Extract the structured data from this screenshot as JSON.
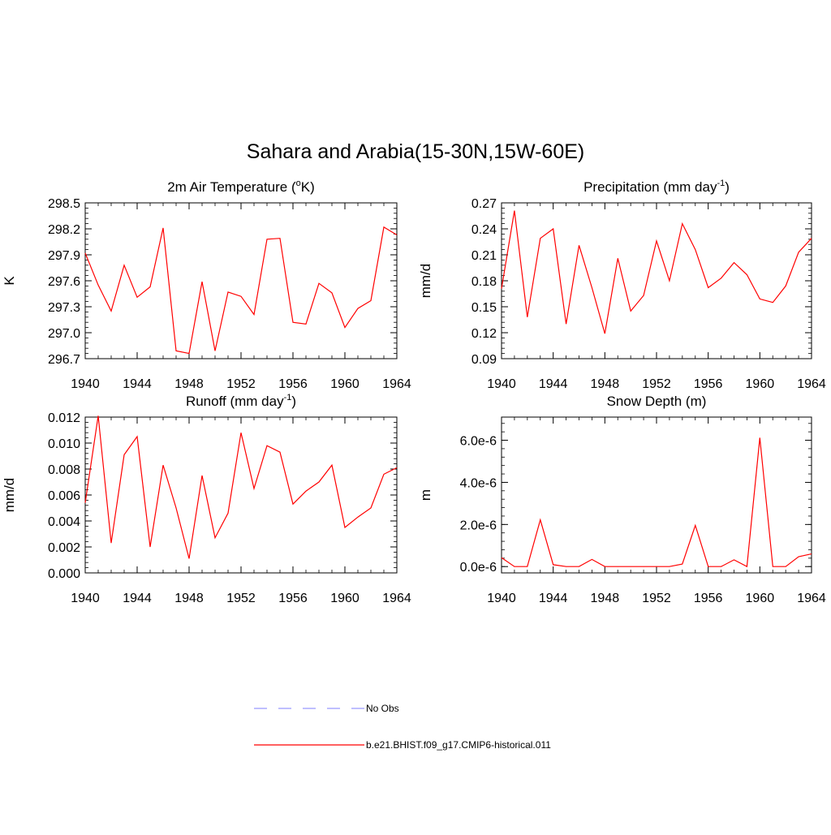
{
  "figure": {
    "title": "Sahara and Arabia(15-30N,15W-60E)",
    "line_color": "#ff0000",
    "obs_line_color": "#9999ff"
  },
  "chart_data": [
    {
      "type": "line",
      "title_base": "2m Air Temperature (",
      "title_sup": "o",
      "title_end": "K)",
      "ylabel": "K",
      "xlabel": "",
      "xlim": [
        1940,
        1964
      ],
      "ylim": [
        296.7,
        298.5
      ],
      "xticks": [
        "1940",
        "1944",
        "1948",
        "1952",
        "1956",
        "1960",
        "1964"
      ],
      "yticks": [
        "296.7",
        "297.0",
        "297.3",
        "297.6",
        "297.9",
        "298.2",
        "298.5"
      ],
      "grid": false,
      "series": [
        {
          "name": "b.e21.BHIST.f09_g17.CMIP6-historical.011",
          "x": [
            1940,
            1941,
            1942,
            1943,
            1944,
            1945,
            1946,
            1947,
            1948,
            1949,
            1950,
            1951,
            1952,
            1953,
            1954,
            1955,
            1956,
            1957,
            1958,
            1959,
            1960,
            1961,
            1962,
            1963,
            1964
          ],
          "y": [
            297.92,
            297.55,
            297.25,
            297.78,
            297.41,
            297.53,
            298.21,
            296.79,
            296.76,
            297.59,
            296.79,
            297.47,
            297.42,
            297.21,
            298.08,
            298.09,
            297.12,
            297.1,
            297.57,
            297.46,
            297.06,
            297.28,
            297.37,
            298.22,
            298.13
          ]
        }
      ]
    },
    {
      "type": "line",
      "title_base": "Precipitation (mm day",
      "title_sup": "-1",
      "title_end": ")",
      "ylabel": "mm/d",
      "xlabel": "",
      "xlim": [
        1940,
        1964
      ],
      "ylim": [
        0.09,
        0.27
      ],
      "xticks": [
        "1940",
        "1944",
        "1948",
        "1952",
        "1956",
        "1960",
        "1964"
      ],
      "yticks": [
        "0.09",
        "0.12",
        "0.15",
        "0.18",
        "0.21",
        "0.24",
        "0.27"
      ],
      "grid": false,
      "series": [
        {
          "name": "b.e21.BHIST.f09_g17.CMIP6-historical.011",
          "x": [
            1940,
            1941,
            1942,
            1943,
            1944,
            1945,
            1946,
            1947,
            1948,
            1949,
            1950,
            1951,
            1952,
            1953,
            1954,
            1955,
            1956,
            1957,
            1958,
            1959,
            1960,
            1961,
            1962,
            1963,
            1964
          ],
          "y": [
            0.171,
            0.261,
            0.138,
            0.229,
            0.24,
            0.13,
            0.221,
            0.172,
            0.119,
            0.206,
            0.145,
            0.163,
            0.226,
            0.18,
            0.246,
            0.216,
            0.172,
            0.183,
            0.201,
            0.187,
            0.159,
            0.155,
            0.174,
            0.213,
            0.229
          ]
        }
      ]
    },
    {
      "type": "line",
      "title_base": "Runoff (mm day",
      "title_sup": "-1",
      "title_end": ")",
      "ylabel": "mm/d",
      "xlabel": "",
      "xlim": [
        1940,
        1964
      ],
      "ylim": [
        0.0,
        0.012
      ],
      "xticks": [
        "1940",
        "1944",
        "1948",
        "1952",
        "1956",
        "1960",
        "1964"
      ],
      "yticks": [
        "0.000",
        "0.002",
        "0.004",
        "0.006",
        "0.008",
        "0.010",
        "0.012"
      ],
      "grid": false,
      "series": [
        {
          "name": "b.e21.BHIST.f09_g17.CMIP6-historical.011",
          "x": [
            1940,
            1941,
            1942,
            1943,
            1944,
            1945,
            1946,
            1947,
            1948,
            1949,
            1950,
            1951,
            1952,
            1953,
            1954,
            1955,
            1956,
            1957,
            1958,
            1959,
            1960,
            1961,
            1962,
            1963,
            1964
          ],
          "y": [
            0.0054,
            0.0121,
            0.0023,
            0.0091,
            0.0105,
            0.002,
            0.0083,
            0.005,
            0.0011,
            0.0075,
            0.0027,
            0.0046,
            0.0108,
            0.0065,
            0.0098,
            0.0093,
            0.0053,
            0.0063,
            0.007,
            0.0083,
            0.0035,
            0.0043,
            0.005,
            0.0076,
            0.0081
          ]
        }
      ]
    },
    {
      "type": "line",
      "title_base": "Snow Depth (m)",
      "title_sup": "",
      "title_end": "",
      "ylabel": "m",
      "xlabel": "",
      "xlim": [
        1940,
        1964
      ],
      "ylim": [
        -3e-07,
        7.1e-06
      ],
      "xticks": [
        "1940",
        "1944",
        "1948",
        "1952",
        "1956",
        "1960",
        "1964"
      ],
      "yticks": [
        "0.0e-6",
        "2.0e-6",
        "4.0e-6",
        "6.0e-6"
      ],
      "ytick_values": [
        0,
        2e-06,
        4e-06,
        6e-06
      ],
      "grid": false,
      "series": [
        {
          "name": "b.e21.BHIST.f09_g17.CMIP6-historical.011",
          "x": [
            1940,
            1941,
            1942,
            1943,
            1944,
            1945,
            1946,
            1947,
            1948,
            1949,
            1950,
            1951,
            1952,
            1953,
            1954,
            1955,
            1956,
            1957,
            1958,
            1959,
            1960,
            1961,
            1962,
            1963,
            1964
          ],
          "y": [
            4.2e-07,
            0.0,
            0.0,
            2.22e-06,
            9e-08,
            0.0,
            0.0,
            3.4e-07,
            0.0,
            0.0,
            0.0,
            0.0,
            0.0,
            0.0,
            1.2e-07,
            1.96e-06,
            0.0,
            0.0,
            3.2e-07,
            0.0,
            6.12e-06,
            0.0,
            0.0,
            4.7e-07,
            6e-07
          ]
        }
      ]
    }
  ],
  "legend": {
    "items": [
      {
        "label": "No Obs",
        "style": "dashed",
        "color": "#9999ff"
      },
      {
        "label": "b.e21.BHIST.f09_g17.CMIP6-historical.011",
        "style": "solid",
        "color": "#ff0000"
      }
    ]
  }
}
